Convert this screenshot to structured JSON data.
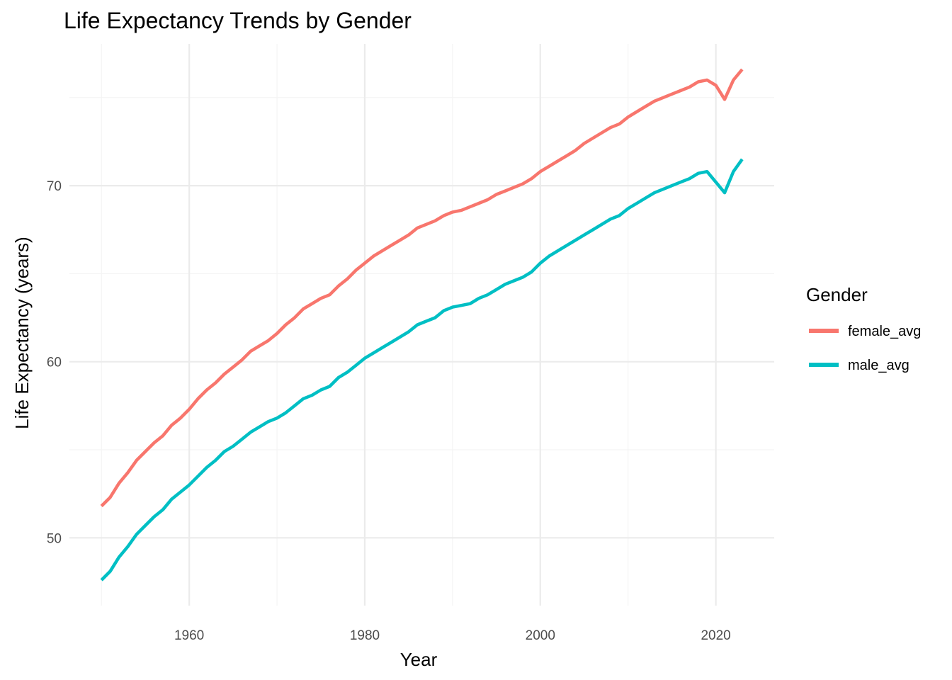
{
  "chart_data": {
    "type": "line",
    "title": "Life Expectancy Trends by Gender",
    "xlabel": "Year",
    "ylabel": "Life Expectancy (years)",
    "xlim": [
      1950,
      2023
    ],
    "ylim": [
      47.6,
      76.6
    ],
    "x_ticks": [
      1960,
      1980,
      2000,
      2020
    ],
    "y_ticks": [
      50,
      60,
      70
    ],
    "grid": true,
    "legend": {
      "title": "Gender",
      "position": "right"
    },
    "x": [
      1950,
      1951,
      1952,
      1953,
      1954,
      1955,
      1956,
      1957,
      1958,
      1959,
      1960,
      1961,
      1962,
      1963,
      1964,
      1965,
      1966,
      1967,
      1968,
      1969,
      1970,
      1971,
      1972,
      1973,
      1974,
      1975,
      1976,
      1977,
      1978,
      1979,
      1980,
      1981,
      1982,
      1983,
      1984,
      1985,
      1986,
      1987,
      1988,
      1989,
      1990,
      1991,
      1992,
      1993,
      1994,
      1995,
      1996,
      1997,
      1998,
      1999,
      2000,
      2001,
      2002,
      2003,
      2004,
      2005,
      2006,
      2007,
      2008,
      2009,
      2010,
      2011,
      2012,
      2013,
      2014,
      2015,
      2016,
      2017,
      2018,
      2019,
      2020,
      2021,
      2022,
      2023
    ],
    "series": [
      {
        "name": "female_avg",
        "color": "#F8766D",
        "values": [
          51.8,
          52.3,
          53.1,
          53.7,
          54.4,
          54.9,
          55.4,
          55.8,
          56.4,
          56.8,
          57.3,
          57.9,
          58.4,
          58.8,
          59.3,
          59.7,
          60.1,
          60.6,
          60.9,
          61.2,
          61.6,
          62.1,
          62.5,
          63.0,
          63.3,
          63.6,
          63.8,
          64.3,
          64.7,
          65.2,
          65.6,
          66.0,
          66.3,
          66.6,
          66.9,
          67.2,
          67.6,
          67.8,
          68.0,
          68.3,
          68.5,
          68.6,
          68.8,
          69.0,
          69.2,
          69.5,
          69.7,
          69.9,
          70.1,
          70.4,
          70.8,
          71.1,
          71.4,
          71.7,
          72.0,
          72.4,
          72.7,
          73.0,
          73.3,
          73.5,
          73.9,
          74.2,
          74.5,
          74.8,
          75.0,
          75.2,
          75.4,
          75.6,
          75.9,
          76.0,
          75.7,
          74.9,
          76.0,
          76.6
        ]
      },
      {
        "name": "male_avg",
        "color": "#00BFC4",
        "values": [
          47.6,
          48.1,
          48.9,
          49.5,
          50.2,
          50.7,
          51.2,
          51.6,
          52.2,
          52.6,
          53.0,
          53.5,
          54.0,
          54.4,
          54.9,
          55.2,
          55.6,
          56.0,
          56.3,
          56.6,
          56.8,
          57.1,
          57.5,
          57.9,
          58.1,
          58.4,
          58.6,
          59.1,
          59.4,
          59.8,
          60.2,
          60.5,
          60.8,
          61.1,
          61.4,
          61.7,
          62.1,
          62.3,
          62.5,
          62.9,
          63.1,
          63.2,
          63.3,
          63.6,
          63.8,
          64.1,
          64.4,
          64.6,
          64.8,
          65.1,
          65.6,
          66.0,
          66.3,
          66.6,
          66.9,
          67.2,
          67.5,
          67.8,
          68.1,
          68.3,
          68.7,
          69.0,
          69.3,
          69.6,
          69.8,
          70.0,
          70.2,
          70.4,
          70.7,
          70.8,
          70.2,
          69.6,
          70.8,
          71.5
        ]
      }
    ]
  }
}
